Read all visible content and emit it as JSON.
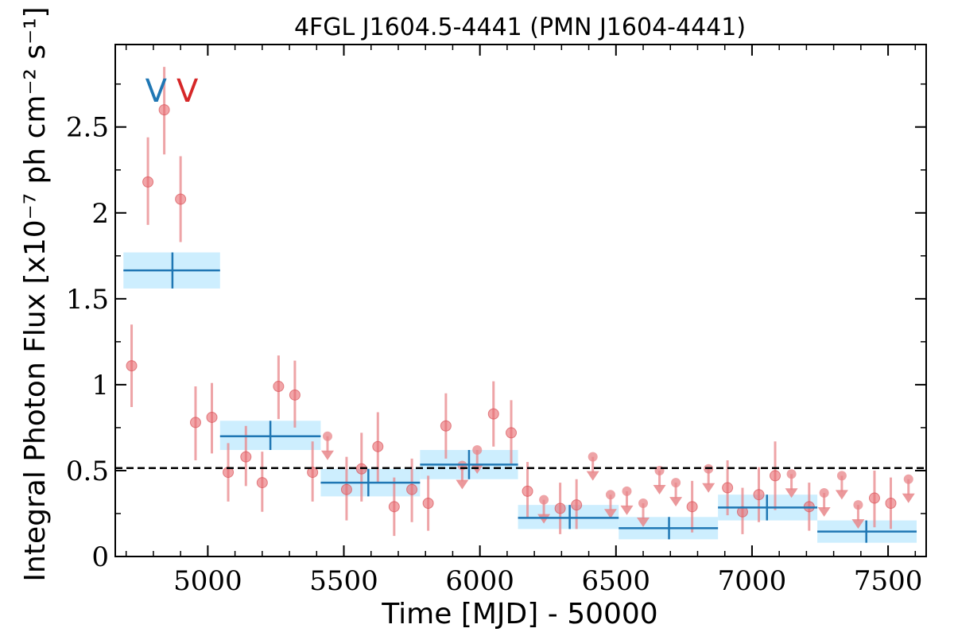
{
  "chart_data": {
    "type": "scatter",
    "title": "4FGL J1604.5-4441 (PMN J1604-4441)",
    "xlabel": "Time [MJD] - 50000",
    "ylabel": "Integral Photon Flux [x10⁻⁷ ph cm⁻² s⁻¹]",
    "xlim": [
      4660,
      7640
    ],
    "ylim": [
      0,
      2.98
    ],
    "x_ticks": [
      5000,
      5500,
      6000,
      6500,
      7000,
      7500
    ],
    "x_tick_labels": [
      "5000",
      "5500",
      "6000",
      "6500",
      "7000",
      "7500"
    ],
    "y_ticks": [
      0,
      0.5,
      1,
      1.5,
      2,
      2.5
    ],
    "y_tick_labels": [
      "0",
      "0.5",
      "1",
      "1.5",
      "2",
      "2.5"
    ],
    "mean_flux": 0.515,
    "markers": [
      {
        "x": 4810,
        "label": "V",
        "color": "#1f77b4"
      },
      {
        "x": 4925,
        "label": "V",
        "color": "#d62728"
      }
    ],
    "series": [
      {
        "kind": "short_bins",
        "color": "#e8868a",
        "points": [
          {
            "x": 4720,
            "y": 1.11,
            "lo": 0.87,
            "hi": 1.35
          },
          {
            "x": 4780,
            "y": 2.18,
            "lo": 1.93,
            "hi": 2.44
          },
          {
            "x": 4840,
            "y": 2.6,
            "lo": 2.34,
            "hi": 2.85
          },
          {
            "x": 4900,
            "y": 2.08,
            "lo": 1.83,
            "hi": 2.33
          },
          {
            "x": 4955,
            "y": 0.78,
            "lo": 0.56,
            "hi": 0.99
          },
          {
            "x": 5015,
            "y": 0.81,
            "lo": 0.6,
            "hi": 1.01
          },
          {
            "x": 5075,
            "y": 0.49,
            "lo": 0.32,
            "hi": 0.66
          },
          {
            "x": 5140,
            "y": 0.58,
            "lo": 0.41,
            "hi": 0.76
          },
          {
            "x": 5200,
            "y": 0.43,
            "lo": 0.26,
            "hi": 0.61
          },
          {
            "x": 5260,
            "y": 0.99,
            "lo": 0.8,
            "hi": 1.17
          },
          {
            "x": 5320,
            "y": 0.94,
            "lo": 0.75,
            "hi": 1.14
          },
          {
            "x": 5385,
            "y": 0.49,
            "lo": 0.32,
            "hi": 0.67
          },
          {
            "x": 5510,
            "y": 0.39,
            "lo": 0.21,
            "hi": 0.58
          },
          {
            "x": 5565,
            "y": 0.51,
            "lo": 0.32,
            "hi": 0.72
          },
          {
            "x": 5625,
            "y": 0.64,
            "lo": 0.43,
            "hi": 0.84
          },
          {
            "x": 5685,
            "y": 0.29,
            "lo": 0.12,
            "hi": 0.46
          },
          {
            "x": 5750,
            "y": 0.39,
            "lo": 0.2,
            "hi": 0.57
          },
          {
            "x": 5810,
            "y": 0.31,
            "lo": 0.15,
            "hi": 0.47
          },
          {
            "x": 5875,
            "y": 0.76,
            "lo": 0.57,
            "hi": 0.95
          },
          {
            "x": 6050,
            "y": 0.83,
            "lo": 0.64,
            "hi": 1.02
          },
          {
            "x": 6115,
            "y": 0.72,
            "lo": 0.53,
            "hi": 0.91
          },
          {
            "x": 6175,
            "y": 0.38,
            "lo": 0.22,
            "hi": 0.55
          },
          {
            "x": 6295,
            "y": 0.28,
            "lo": 0.13,
            "hi": 0.43
          },
          {
            "x": 6355,
            "y": 0.3,
            "lo": 0.16,
            "hi": 0.45
          },
          {
            "x": 6780,
            "y": 0.29,
            "lo": 0.14,
            "hi": 0.44
          },
          {
            "x": 6910,
            "y": 0.4,
            "lo": 0.24,
            "hi": 0.56
          },
          {
            "x": 6965,
            "y": 0.26,
            "lo": 0.13,
            "hi": 0.4
          },
          {
            "x": 7025,
            "y": 0.36,
            "lo": 0.2,
            "hi": 0.52
          },
          {
            "x": 7085,
            "y": 0.47,
            "lo": 0.27,
            "hi": 0.67
          },
          {
            "x": 7210,
            "y": 0.29,
            "lo": 0.15,
            "hi": 0.43
          },
          {
            "x": 7450,
            "y": 0.34,
            "lo": 0.17,
            "hi": 0.5
          },
          {
            "x": 7510,
            "y": 0.31,
            "lo": 0.16,
            "hi": 0.46
          }
        ],
        "upper_limits": [
          {
            "x": 5440,
            "y": 0.7
          },
          {
            "x": 5935,
            "y": 0.53
          },
          {
            "x": 5990,
            "y": 0.62
          },
          {
            "x": 6235,
            "y": 0.33
          },
          {
            "x": 6415,
            "y": 0.58
          },
          {
            "x": 6480,
            "y": 0.36
          },
          {
            "x": 6540,
            "y": 0.38
          },
          {
            "x": 6600,
            "y": 0.31
          },
          {
            "x": 6660,
            "y": 0.5
          },
          {
            "x": 6720,
            "y": 0.43
          },
          {
            "x": 6840,
            "y": 0.51
          },
          {
            "x": 7145,
            "y": 0.48
          },
          {
            "x": 7265,
            "y": 0.37
          },
          {
            "x": 7330,
            "y": 0.47
          },
          {
            "x": 7390,
            "y": 0.3
          },
          {
            "x": 7575,
            "y": 0.45
          }
        ]
      },
      {
        "kind": "long_bins",
        "color": "#1f77b4",
        "band_color": "#cdeefe",
        "bins": [
          {
            "x0": 4690,
            "x1": 5045,
            "xc": 4870,
            "y": 1.665,
            "lo": 1.56,
            "hi": 1.77
          },
          {
            "x0": 5045,
            "x1": 5415,
            "xc": 5230,
            "y": 0.7,
            "lo": 0.62,
            "hi": 0.79
          },
          {
            "x0": 5415,
            "x1": 5780,
            "xc": 5590,
            "y": 0.43,
            "lo": 0.35,
            "hi": 0.51
          },
          {
            "x0": 5780,
            "x1": 6140,
            "xc": 5960,
            "y": 0.535,
            "lo": 0.45,
            "hi": 0.62
          },
          {
            "x0": 6140,
            "x1": 6510,
            "xc": 6330,
            "y": 0.225,
            "lo": 0.16,
            "hi": 0.3
          },
          {
            "x0": 6510,
            "x1": 6875,
            "xc": 6695,
            "y": 0.165,
            "lo": 0.1,
            "hi": 0.23
          },
          {
            "x0": 6875,
            "x1": 7240,
            "xc": 7055,
            "y": 0.285,
            "lo": 0.21,
            "hi": 0.36
          },
          {
            "x0": 7240,
            "x1": 7605,
            "xc": 7420,
            "y": 0.145,
            "lo": 0.08,
            "hi": 0.21
          }
        ]
      }
    ],
    "grid": false,
    "legend": "none"
  }
}
